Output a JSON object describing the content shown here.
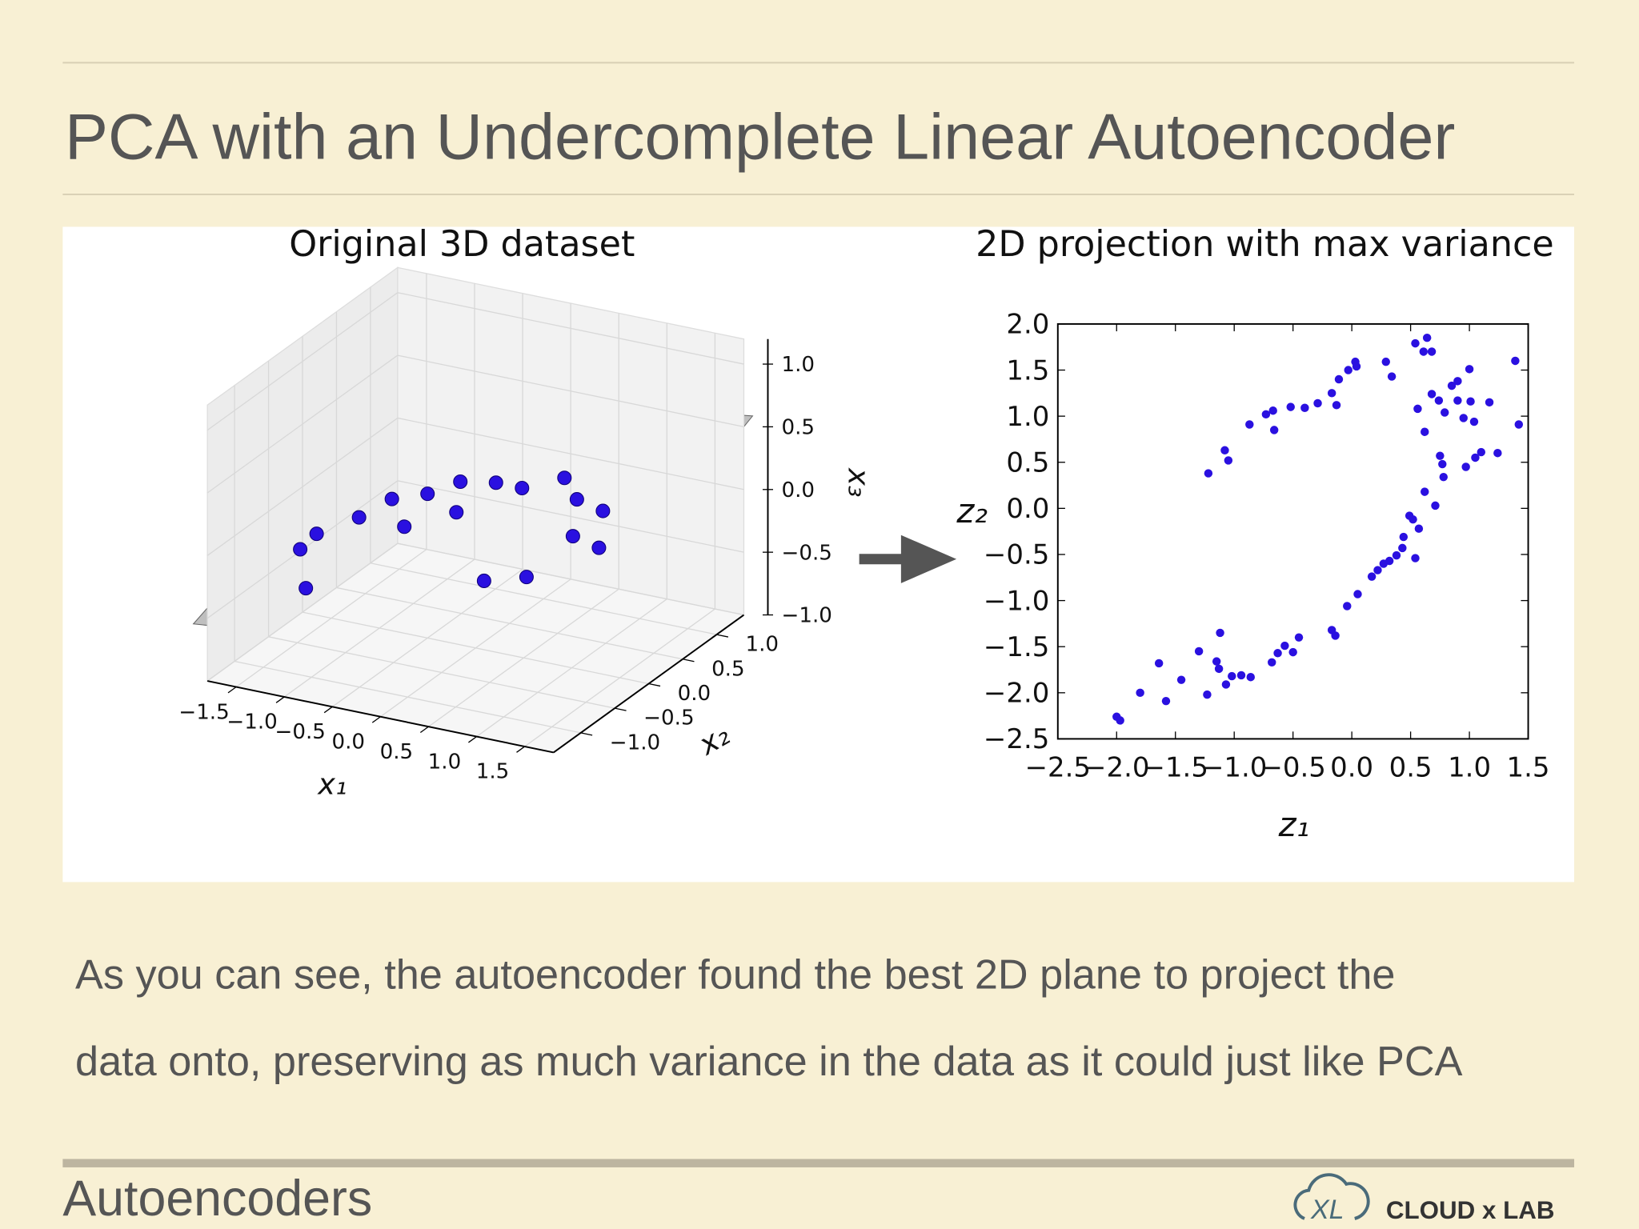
{
  "title": "PCA with an Undercomplete Linear Autoencoder",
  "body": [
    "As you can see, the autoencoder found the best 2D plane to project the",
    "data onto, preserving as much variance in the data as it could just like PCA"
  ],
  "footer": "Autoencoders",
  "logo": "CLOUD x LAB",
  "chart_data": [
    {
      "type": "scatter3d",
      "title": "Original 3D dataset",
      "x_label": "x₁",
      "y_label": "x₂",
      "z_label": "x₃",
      "color": "#2a10e0",
      "xlim": [
        -1.8,
        1.8
      ],
      "ylim": [
        -1.4,
        1.4
      ],
      "zlim": [
        -1.0,
        1.2
      ],
      "xticks": [
        {
          "value": -1.5,
          "label": "−1.5"
        },
        {
          "value": -1.0,
          "label": "−1.0"
        },
        {
          "value": -0.5,
          "label": "−0.5"
        },
        {
          "value": 0,
          "label": "0.0"
        },
        {
          "value": 0.5,
          "label": "0.5"
        },
        {
          "value": 1.0,
          "label": "1.0"
        },
        {
          "value": 1.5,
          "label": "1.5"
        }
      ],
      "yticks": [
        {
          "value": -1.0,
          "label": "−1.0"
        },
        {
          "value": -0.5,
          "label": "−0.5"
        },
        {
          "value": 0,
          "label": "0.0"
        },
        {
          "value": 0.5,
          "label": "0.5"
        },
        {
          "value": 1.0,
          "label": "1.0"
        }
      ],
      "zticks": [
        {
          "value": -1.0,
          "label": "−1.0"
        },
        {
          "value": -0.5,
          "label": "−0.5"
        },
        {
          "value": 0,
          "label": "0.0"
        },
        {
          "value": 0.5,
          "label": "0.5"
        },
        {
          "value": 1.0,
          "label": "1.0"
        }
      ],
      "x": [
        -1.4,
        -1.3,
        -1.2,
        -1.0,
        -0.8,
        -0.5,
        -0.3,
        0.0,
        0.2,
        0.5,
        0.7,
        0.8,
        0.6,
        0.3,
        -0.2,
        0.9,
        -0.6,
        1.0
      ],
      "y": [
        -0.6,
        -0.5,
        -0.8,
        -0.3,
        -0.1,
        0.0,
        0.2,
        0.3,
        0.4,
        0.6,
        0.5,
        0.3,
        -0.1,
        -0.3,
        0.0,
        0.6,
        -0.2,
        0.4
      ],
      "z": [
        -0.2,
        -0.1,
        -0.4,
        0.0,
        0.1,
        0.15,
        0.2,
        0.2,
        0.15,
        0.2,
        0.1,
        -0.1,
        -0.3,
        -0.3,
        0.05,
        0.0,
        -0.05,
        -0.2
      ]
    },
    {
      "type": "scatter",
      "title": "2D projection with max variance",
      "x_label": "z₁",
      "y_label": "z₂",
      "color": "#2a10e0",
      "xlim": [
        -2.5,
        1.5
      ],
      "ylim": [
        -2.5,
        2.0
      ],
      "xticks": [
        {
          "value": -2.5,
          "label": "−2.5"
        },
        {
          "value": -2.0,
          "label": "−2.0"
        },
        {
          "value": -1.5,
          "label": "−1.5"
        },
        {
          "value": -1.0,
          "label": "−1.0"
        },
        {
          "value": -0.5,
          "label": "−0.5"
        },
        {
          "value": 0,
          "label": "0.0"
        },
        {
          "value": 0.5,
          "label": "0.5"
        },
        {
          "value": 1.0,
          "label": "1.0"
        },
        {
          "value": 1.5,
          "label": "1.5"
        }
      ],
      "yticks": [
        {
          "value": -2.5,
          "label": "−2.5"
        },
        {
          "value": -2.0,
          "label": "−2.0"
        },
        {
          "value": -1.5,
          "label": "−1.5"
        },
        {
          "value": -1.0,
          "label": "−1.0"
        },
        {
          "value": -0.5,
          "label": "−0.5"
        },
        {
          "value": 0,
          "label": "0.0"
        },
        {
          "value": 0.5,
          "label": "0.5"
        },
        {
          "value": 1.0,
          "label": "1.0"
        },
        {
          "value": 1.5,
          "label": "1.5"
        },
        {
          "value": 2.0,
          "label": "2.0"
        }
      ],
      "x": [
        -2.0,
        -1.97,
        -1.8,
        -1.64,
        -1.58,
        -1.45,
        -1.3,
        -1.23,
        -1.15,
        -1.12,
        -1.13,
        -1.07,
        -1.02,
        -0.94,
        -0.86,
        -0.68,
        -0.63,
        -0.57,
        -0.5,
        -0.45,
        -0.17,
        -0.14,
        -0.04,
        0.05,
        0.17,
        0.22,
        0.27,
        0.32,
        0.38,
        0.43,
        0.44,
        0.49,
        0.52,
        0.54,
        0.57,
        0.62,
        0.71,
        0.75,
        0.78,
        0.77,
        -1.22,
        -1.08,
        -1.05,
        -0.87,
        -0.73,
        -0.67,
        -0.66,
        -0.52,
        -0.4,
        -0.29,
        -0.17,
        -0.13,
        -0.11,
        -0.03,
        0.03,
        0.04,
        0.29,
        0.34,
        0.54,
        0.64,
        0.56,
        0.62,
        0.68,
        0.74,
        0.79,
        0.85,
        0.9,
        0.9,
        0.95,
        1.0,
        1.01,
        1.04,
        0.97,
        1.05,
        1.1,
        1.17,
        1.24,
        1.39,
        1.42,
        0.61,
        0.68
      ],
      "y": [
        -2.26,
        -2.3,
        -2.0,
        -1.68,
        -2.09,
        -1.86,
        -1.55,
        -2.02,
        -1.66,
        -1.35,
        -1.74,
        -1.91,
        -1.82,
        -1.81,
        -1.83,
        -1.67,
        -1.57,
        -1.49,
        -1.56,
        -1.4,
        -1.32,
        -1.38,
        -1.06,
        -0.93,
        -0.74,
        -0.67,
        -0.6,
        -0.57,
        -0.51,
        -0.43,
        -0.31,
        -0.08,
        -0.12,
        -0.54,
        -0.22,
        0.18,
        0.03,
        0.57,
        0.34,
        0.48,
        0.38,
        0.63,
        0.52,
        0.91,
        1.02,
        1.06,
        0.85,
        1.1,
        1.09,
        1.14,
        1.25,
        1.12,
        1.4,
        1.5,
        1.59,
        1.54,
        1.59,
        1.43,
        1.79,
        1.85,
        1.08,
        0.83,
        1.24,
        1.17,
        1.04,
        1.33,
        1.38,
        1.17,
        0.98,
        1.51,
        1.16,
        0.94,
        0.45,
        0.55,
        0.61,
        1.15,
        0.6,
        1.6,
        0.91,
        1.7,
        1.7
      ]
    }
  ]
}
